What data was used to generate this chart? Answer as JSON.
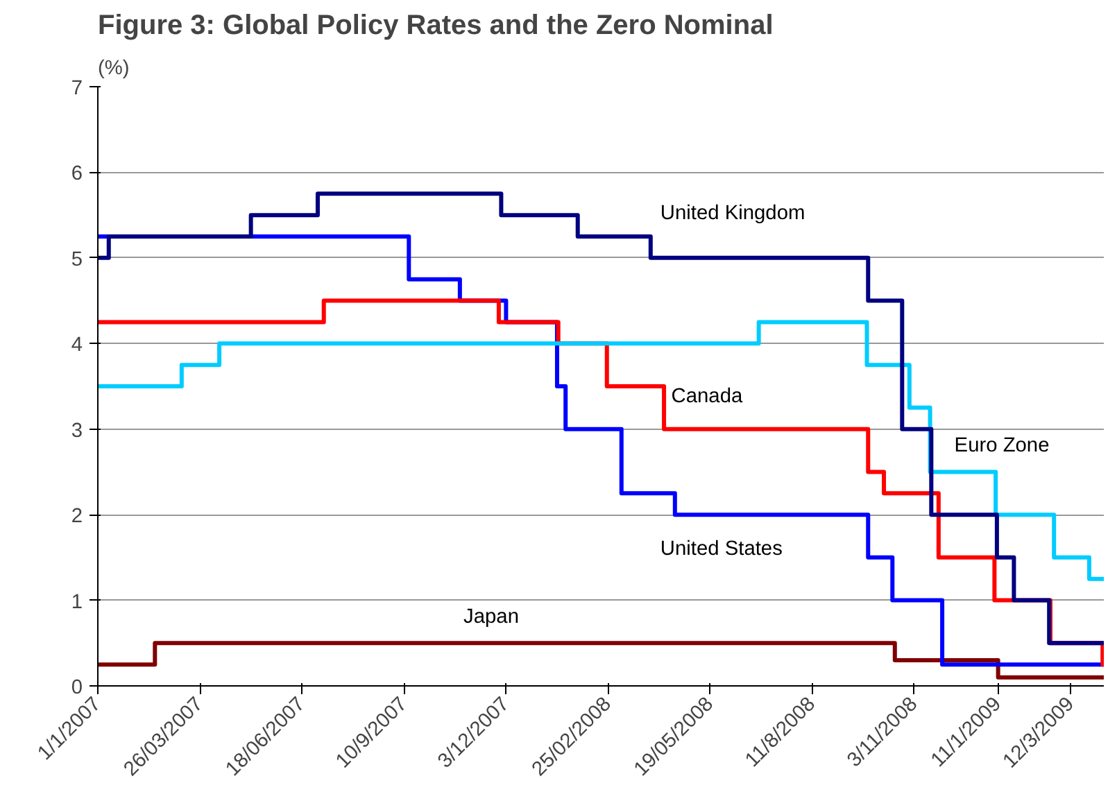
{
  "chart_data": {
    "type": "step",
    "title": "Figure 3: Global Policy Rates and the Zero Nominal",
    "ylabel": "(%)",
    "xlim": [
      "2007-01-01",
      "2009-04-08"
    ],
    "ylim": [
      0,
      7
    ],
    "yticks": [
      0,
      1,
      2,
      3,
      4,
      5,
      6,
      7
    ],
    "xticks": [
      {
        "value": "2007-01-01",
        "label": "1/1/2007"
      },
      {
        "value": "2007-03-26",
        "label": "26/03/2007"
      },
      {
        "value": "2007-06-18",
        "label": "18/06/2007"
      },
      {
        "value": "2007-09-10",
        "label": "10/9/2007"
      },
      {
        "value": "2007-12-03",
        "label": "3/12/2007"
      },
      {
        "value": "2008-02-25",
        "label": "25/02/2008"
      },
      {
        "value": "2008-05-19",
        "label": "19/05/2008"
      },
      {
        "value": "2008-08-11",
        "label": "11/8/2008"
      },
      {
        "value": "2008-11-03",
        "label": "3/11/2008"
      },
      {
        "value": "2009-01-11",
        "label": "11/1/2009"
      },
      {
        "value": "2009-03-12",
        "label": "12/3/2009"
      }
    ],
    "grid": "y",
    "legend": false,
    "marker": "none",
    "line_style": "solid",
    "series": [
      {
        "name": "Japan",
        "color": "#800000",
        "x": [
          "2007-01-01",
          "2007-02-17",
          "2008-10-18",
          "2009-01-11",
          "2009-04-08"
        ],
        "values": [
          0.25,
          0.5,
          0.3,
          0.1,
          0.1
        ]
      },
      {
        "name": "United States",
        "color": "#0000ff",
        "x": [
          "2007-01-01",
          "2007-09-14",
          "2007-10-26",
          "2007-12-03",
          "2008-01-14",
          "2008-01-21",
          "2008-03-07",
          "2008-04-20",
          "2008-09-26",
          "2008-10-16",
          "2008-11-26",
          "2009-04-08"
        ],
        "values": [
          5.25,
          4.75,
          4.5,
          4.25,
          3.5,
          3.0,
          2.25,
          2.0,
          1.5,
          1.0,
          0.25,
          0.25
        ]
      },
      {
        "name": "Canada",
        "color": "#ff0000",
        "x": [
          "2007-01-01",
          "2007-07-06",
          "2007-11-27",
          "2008-01-15",
          "2008-02-24",
          "2008-04-11",
          "2008-09-26",
          "2008-10-09",
          "2008-11-23",
          "2009-01-08",
          "2009-02-23",
          "2009-04-07",
          "2009-04-08"
        ],
        "values": [
          4.25,
          4.5,
          4.25,
          4.0,
          3.5,
          3.0,
          2.5,
          2.25,
          1.5,
          1.0,
          0.5,
          0.25,
          0.25
        ]
      },
      {
        "name": "Euro Zone",
        "color": "#00ccff",
        "x": [
          "2007-01-01",
          "2007-03-11",
          "2007-04-11",
          "2008-06-28",
          "2008-09-25",
          "2008-10-30",
          "2008-11-16",
          "2009-01-09",
          "2009-02-26",
          "2009-03-27",
          "2009-04-08"
        ],
        "values": [
          3.5,
          3.75,
          4.0,
          4.25,
          3.75,
          3.25,
          2.5,
          2.0,
          1.5,
          1.25,
          1.25
        ]
      },
      {
        "name": "United Kingdom",
        "color": "#000080",
        "x": [
          "2007-01-01",
          "2007-01-10",
          "2007-05-07",
          "2007-07-01",
          "2007-11-29",
          "2008-01-31",
          "2008-03-31",
          "2008-09-26",
          "2008-10-24",
          "2008-11-17",
          "2009-01-10",
          "2009-01-24",
          "2009-02-22",
          "2009-04-08"
        ],
        "values": [
          5.0,
          5.25,
          5.5,
          5.75,
          5.5,
          5.25,
          5.0,
          4.5,
          3.0,
          2.0,
          1.5,
          1.0,
          0.5,
          0.5
        ]
      }
    ]
  }
}
